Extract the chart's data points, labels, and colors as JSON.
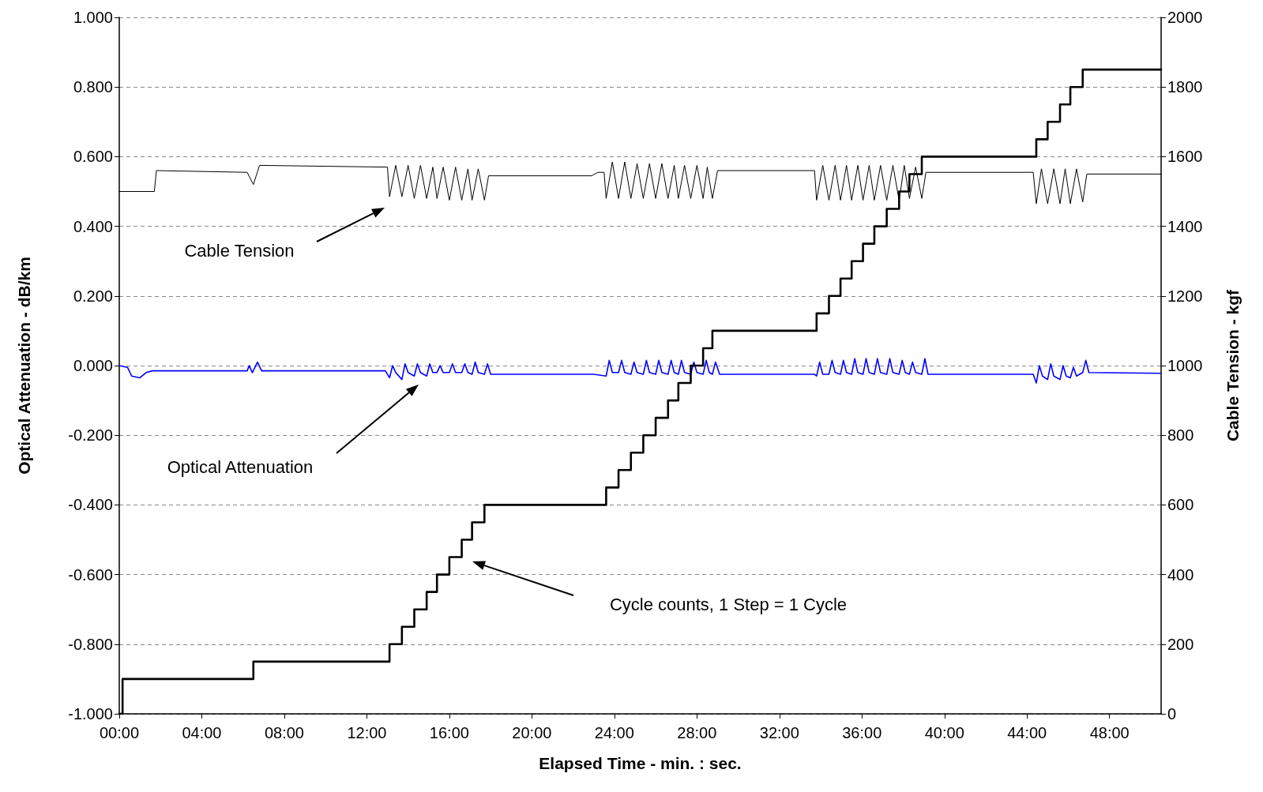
{
  "chart_data": {
    "type": "line",
    "xlabel": "Elapsed Time - min. : sec.",
    "ylabel": "Optical Attenuation - dB/km",
    "y2label": "Cable Tension - kgf",
    "marker": "none",
    "grid": "y",
    "xlim": [
      0,
      50.5
    ],
    "xticks": [
      {
        "value": 0,
        "label": "00:00"
      },
      {
        "value": 4,
        "label": "04:00"
      },
      {
        "value": 8,
        "label": "08:00"
      },
      {
        "value": 12,
        "label": "12:00"
      },
      {
        "value": 16,
        "label": "16:00"
      },
      {
        "value": 20,
        "label": "20:00"
      },
      {
        "value": 24,
        "label": "24:00"
      },
      {
        "value": 28,
        "label": "28:00"
      },
      {
        "value": 32,
        "label": "32:00"
      },
      {
        "value": 36,
        "label": "36:00"
      },
      {
        "value": 40,
        "label": "40:00"
      },
      {
        "value": 44,
        "label": "44:00"
      },
      {
        "value": 48,
        "label": "48:00"
      }
    ],
    "ylim": [
      -1,
      1
    ],
    "yticks": [
      {
        "value": -1,
        "label": "-1.000"
      },
      {
        "value": -0.8,
        "label": "-0.800"
      },
      {
        "value": -0.6,
        "label": "-0.600"
      },
      {
        "value": -0.4,
        "label": "-0.400"
      },
      {
        "value": -0.2,
        "label": "-0.200"
      },
      {
        "value": 0,
        "label": "0.000"
      },
      {
        "value": 0.2,
        "label": "0.200"
      },
      {
        "value": 0.4,
        "label": "0.400"
      },
      {
        "value": 0.6,
        "label": "0.600"
      },
      {
        "value": 0.8,
        "label": "0.800"
      },
      {
        "value": 1,
        "label": "1.000"
      }
    ],
    "y2lim": [
      0,
      2000
    ],
    "y2ticks": [
      0,
      200,
      400,
      600,
      800,
      1000,
      1200,
      1400,
      1600,
      1800,
      2000
    ],
    "annotations": [
      "Cable Tension",
      "Optical Attenuation",
      "Cycle counts, 1 Step = 1 Cycle"
    ],
    "series": [
      {
        "axis": "y2",
        "color": "#000000",
        "x": [
          0,
          1.7,
          1.8,
          6.2,
          6.5,
          6.8,
          13.0,
          13.1,
          13.4,
          13.7,
          14.0,
          14.3,
          14.6,
          14.9,
          15.2,
          15.4,
          15.7,
          16.0,
          16.3,
          16.6,
          16.9,
          17.1,
          17.4,
          17.7,
          17.9,
          22.9,
          23.2,
          23.5,
          23.6,
          23.9,
          24.2,
          24.5,
          24.8,
          25.1,
          25.4,
          25.7,
          26.0,
          26.3,
          26.6,
          26.9,
          27.1,
          27.4,
          27.7,
          28.0,
          28.3,
          28.5,
          28.75,
          29.0,
          33.7,
          33.8,
          34.1,
          34.4,
          34.7,
          34.96,
          35.25,
          35.5,
          35.8,
          36.05,
          36.35,
          36.6,
          36.9,
          37.2,
          37.5,
          37.8,
          38.05,
          38.3,
          38.6,
          38.9,
          39.1,
          44.3,
          44.45,
          44.7,
          45.0,
          45.3,
          45.6,
          45.85,
          46.1,
          46.4,
          46.7,
          46.9,
          50.5
        ],
        "values": [
          1500,
          1500,
          1560,
          1555,
          1520,
          1575,
          1570,
          1485,
          1575,
          1485,
          1575,
          1480,
          1575,
          1480,
          1570,
          1480,
          1570,
          1475,
          1570,
          1475,
          1565,
          1475,
          1565,
          1475,
          1545,
          1545,
          1555,
          1555,
          1480,
          1585,
          1480,
          1585,
          1480,
          1580,
          1480,
          1580,
          1480,
          1580,
          1480,
          1575,
          1480,
          1575,
          1480,
          1575,
          1480,
          1570,
          1480,
          1560,
          1560,
          1475,
          1575,
          1475,
          1575,
          1475,
          1575,
          1475,
          1575,
          1475,
          1575,
          1475,
          1575,
          1475,
          1575,
          1475,
          1575,
          1480,
          1570,
          1480,
          1555,
          1555,
          1465,
          1565,
          1465,
          1565,
          1465,
          1565,
          1465,
          1565,
          1470,
          1550,
          1550
        ]
      },
      {
        "color": "#0000ff",
        "x": [
          0,
          0.4,
          0.6,
          1.0,
          1.3,
          1.6,
          5,
          6.2,
          6.3,
          6.45,
          6.7,
          6.9,
          10,
          12.9,
          13.1,
          13.25,
          13.4,
          13.7,
          13.85,
          14.0,
          14.3,
          14.45,
          14.6,
          14.9,
          15.05,
          15.2,
          15.4,
          15.55,
          15.7,
          16.0,
          16.15,
          16.3,
          16.6,
          16.75,
          16.9,
          17.1,
          17.25,
          17.4,
          17.7,
          17.85,
          18.0,
          20,
          23.0,
          23.6,
          23.75,
          23.9,
          24.2,
          24.35,
          24.5,
          24.8,
          24.95,
          25.1,
          25.4,
          25.55,
          25.7,
          26.0,
          26.15,
          26.3,
          26.6,
          26.75,
          26.9,
          27.1,
          27.25,
          27.4,
          27.7,
          27.85,
          28.0,
          28.3,
          28.45,
          28.6,
          28.75,
          28.9,
          29.1,
          33.7,
          33.8,
          33.95,
          34.1,
          34.4,
          34.55,
          34.7,
          34.96,
          35.1,
          35.25,
          35.5,
          35.65,
          35.8,
          36.05,
          36.2,
          36.35,
          36.6,
          36.75,
          36.9,
          37.2,
          37.35,
          37.5,
          37.8,
          37.95,
          38.1,
          38.3,
          38.45,
          38.6,
          38.9,
          39.05,
          39.2,
          44.3,
          44.45,
          44.6,
          44.75,
          45.0,
          45.15,
          45.3,
          45.6,
          45.75,
          45.9,
          46.1,
          46.25,
          46.4,
          46.7,
          46.85,
          47.0,
          50.5
        ],
        "values": [
          0,
          -0.005,
          -0.03,
          -0.035,
          -0.02,
          -0.015,
          -0.015,
          -0.015,
          0,
          -0.02,
          0.01,
          -0.015,
          -0.015,
          -0.015,
          -0.035,
          0,
          -0.02,
          -0.04,
          0.005,
          -0.02,
          -0.03,
          0.005,
          -0.02,
          -0.03,
          0.005,
          -0.02,
          -0.02,
          0,
          -0.02,
          -0.02,
          0.005,
          -0.02,
          -0.02,
          0.005,
          -0.02,
          -0.025,
          0.01,
          -0.02,
          -0.025,
          0.005,
          -0.025,
          -0.025,
          -0.025,
          -0.03,
          0.015,
          -0.02,
          -0.02,
          0.015,
          -0.02,
          -0.025,
          0.01,
          -0.02,
          -0.025,
          0.015,
          -0.02,
          -0.025,
          0.015,
          -0.02,
          -0.025,
          0.015,
          -0.02,
          -0.025,
          0.015,
          -0.02,
          -0.025,
          0.01,
          -0.02,
          -0.025,
          0.015,
          -0.02,
          -0.025,
          0.01,
          -0.025,
          -0.025,
          -0.03,
          0.01,
          -0.025,
          -0.025,
          0.015,
          -0.02,
          -0.025,
          0.015,
          -0.02,
          -0.025,
          0.02,
          -0.02,
          -0.025,
          0.02,
          -0.02,
          -0.025,
          0.02,
          -0.02,
          -0.025,
          0.02,
          -0.02,
          -0.025,
          0.015,
          -0.02,
          -0.025,
          0.01,
          -0.02,
          -0.025,
          0.02,
          -0.025,
          -0.025,
          -0.05,
          0,
          -0.03,
          -0.04,
          0.005,
          -0.03,
          -0.04,
          0,
          -0.03,
          -0.035,
          -0.005,
          -0.03,
          -0.02,
          0.015,
          -0.02,
          -0.022
        ]
      },
      {
        "type": "step",
        "axis": "y2",
        "color": "#000000",
        "x": [
          0,
          0.16,
          6.5,
          13.1,
          13.7,
          14.3,
          14.9,
          15.4,
          16.0,
          16.6,
          17.1,
          17.7,
          23.6,
          24.2,
          24.8,
          25.4,
          26.0,
          26.6,
          27.1,
          27.7,
          28.3,
          28.75,
          33.8,
          34.4,
          34.96,
          35.5,
          36.05,
          36.6,
          37.2,
          37.8,
          38.3,
          38.9,
          44.45,
          45.0,
          45.6,
          46.1,
          46.7,
          50.5
        ],
        "values": [
          0,
          100,
          150,
          200,
          250,
          300,
          350,
          400,
          450,
          500,
          550,
          600,
          650,
          700,
          750,
          800,
          850,
          900,
          950,
          1000,
          1050,
          1100,
          1150,
          1200,
          1250,
          1300,
          1350,
          1400,
          1450,
          1500,
          1550,
          1600,
          1650,
          1700,
          1750,
          1800,
          1850,
          1850
        ]
      }
    ]
  }
}
